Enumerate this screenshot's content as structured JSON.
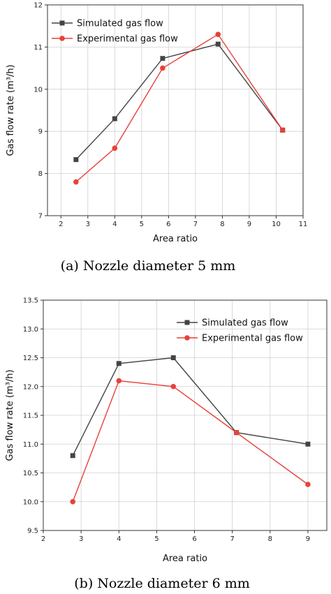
{
  "chart_data": [
    {
      "type": "line",
      "caption": "(a) Nozzle diameter 5 mm",
      "xlabel": "Area ratio",
      "ylabel": "Gas flow rate (m³/h)",
      "xlim": [
        1.5,
        11
      ],
      "ylim": [
        7,
        12
      ],
      "xticks": [
        "2",
        "3",
        "4",
        "5",
        "6",
        "7",
        "8",
        "9",
        "10",
        "11"
      ],
      "yticks": [
        "7",
        "8",
        "9",
        "10",
        "11",
        "12"
      ],
      "grid": true,
      "legend_position": "top-left",
      "series": [
        {
          "name": "Simulated gas flow",
          "color": "#444444",
          "marker": "square",
          "x": [
            2.56,
            4.0,
            5.78,
            7.84,
            10.24
          ],
          "y": [
            8.33,
            9.3,
            10.73,
            11.07,
            9.03
          ]
        },
        {
          "name": "Experimental gas flow",
          "color": "#e8413a",
          "marker": "circle",
          "x": [
            2.56,
            4.0,
            5.78,
            7.84,
            10.24
          ],
          "y": [
            7.8,
            8.6,
            10.5,
            11.3,
            9.03
          ]
        }
      ]
    },
    {
      "type": "line",
      "caption": "(b) Nozzle diameter 6 mm",
      "xlabel": "Area ratio",
      "ylabel": "Gas flow rate (m³/h)",
      "xlim": [
        2,
        9.5
      ],
      "ylim": [
        9.5,
        13.5
      ],
      "xticks": [
        "2",
        "3",
        "4",
        "5",
        "6",
        "7",
        "8",
        "9"
      ],
      "yticks": [
        "9.5",
        "10.0",
        "10.5",
        "11.0",
        "11.5",
        "12.0",
        "12.5",
        "13.0",
        "13.5"
      ],
      "grid": true,
      "legend_position": "top-right",
      "series": [
        {
          "name": "Simulated gas flow",
          "color": "#444444",
          "marker": "square",
          "x": [
            2.78,
            4.0,
            5.44,
            7.11,
            9.0
          ],
          "y": [
            10.8,
            12.4,
            12.5,
            11.2,
            11.0
          ]
        },
        {
          "name": "Experimental gas flow",
          "color": "#e8413a",
          "marker": "circle",
          "x": [
            2.78,
            4.0,
            5.44,
            7.11,
            9.0
          ],
          "y": [
            10.0,
            12.1,
            12.0,
            11.2,
            10.3
          ]
        }
      ]
    }
  ]
}
